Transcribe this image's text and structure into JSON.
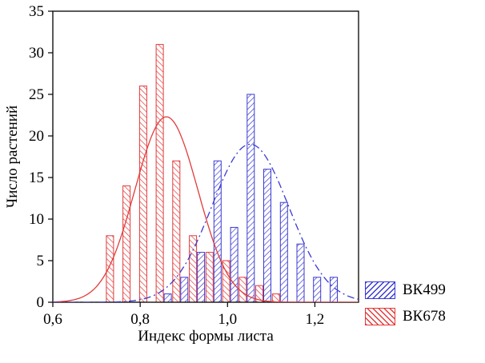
{
  "axes": {
    "x_label": "Индекс формы листа",
    "y_label": "Число растений"
  },
  "legend": {
    "items": [
      {
        "label": "ВК499",
        "color": "#3a3ad2",
        "hatch": "slash"
      },
      {
        "label": "ВК678",
        "color": "#e23b3b",
        "hatch": "backslash"
      }
    ]
  },
  "chart_data": {
    "type": "bar",
    "subtype": "paired-histogram-with-normal-fit-curves",
    "title": "",
    "xlabel": "Индекс формы листа",
    "ylabel": "Число растений",
    "xlim": [
      0.6,
      1.3
    ],
    "ylim": [
      0,
      35
    ],
    "grid": false,
    "legend_position": "outside-bottom-right",
    "x_tick_values": [
      0.6,
      0.8,
      1.0,
      1.2
    ],
    "x_tick_labels": [
      "0,6",
      "0,8",
      "1,0",
      "1,2"
    ],
    "y_tick_values": [
      0,
      5,
      10,
      15,
      20,
      25,
      30,
      35
    ],
    "bin_centers": [
      0.74,
      0.778,
      0.816,
      0.854,
      0.892,
      0.93,
      0.968,
      1.006,
      1.044,
      1.082,
      1.12,
      1.158,
      1.196,
      1.234
    ],
    "series": [
      {
        "name": "ВК678",
        "color": "#e23b3b",
        "hatch": "backslash",
        "values": [
          8,
          14,
          26,
          31,
          17,
          8,
          6,
          5,
          3,
          2,
          1,
          0,
          0,
          0
        ]
      },
      {
        "name": "ВК499",
        "color": "#3a3ad2",
        "hatch": "slash",
        "values": [
          0,
          0,
          0,
          1,
          3,
          6,
          17,
          9,
          25,
          16,
          12,
          7,
          3,
          3
        ]
      }
    ],
    "fit_curves": [
      {
        "series": "ВК678",
        "style": "solid",
        "amplitude": 22.3,
        "mean": 0.86,
        "sigma": 0.072
      },
      {
        "series": "ВК499",
        "style": "dash-dot",
        "amplitude": 19.0,
        "mean": 1.052,
        "sigma": 0.088
      }
    ]
  }
}
